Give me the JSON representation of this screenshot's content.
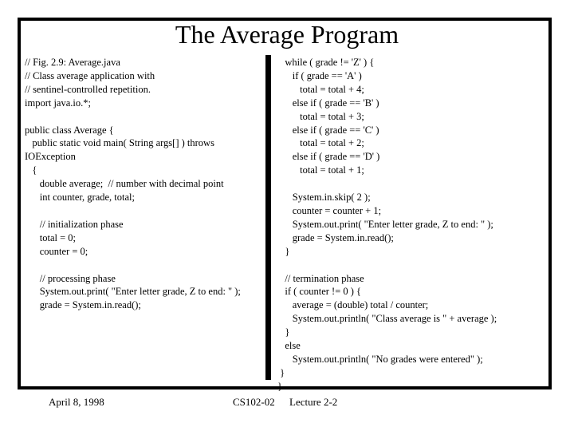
{
  "slide": {
    "title": "The Average Program",
    "left_code": "// Fig. 2.9: Average.java\n// Class average application with\n// sentinel-controlled repetition.\nimport java.io.*;\n\npublic class Average {\n   public static void main( String args[] ) throws\nIOException\n   {\n      double average;  // number with decimal point\n      int counter, grade, total;\n\n      // initialization phase\n      total = 0;\n      counter = 0;\n\n      // processing phase\n      System.out.print( \"Enter letter grade, Z to end: \" );\n      grade = System.in.read();",
    "right_code": "   while ( grade != 'Z' ) {\n      if ( grade == 'A' )\n         total = total + 4;\n      else if ( grade == 'B' )\n         total = total + 3;\n      else if ( grade == 'C' )\n         total = total + 2;\n      else if ( grade == 'D' )\n         total = total + 1;\n\n      System.in.skip( 2 );\n      counter = counter + 1;\n      System.out.print( \"Enter letter grade, Z to end: \" );\n      grade = System.in.read();\n   }\n\n   // termination phase\n   if ( counter != 0 ) {\n      average = (double) total / counter;\n      System.out.println( \"Class average is \" + average );\n   }\n   else\n      System.out.println( \"No grades were entered\" );\n }\n}",
    "footer": {
      "date": "April 8, 1998",
      "course": "CS102-02",
      "lecture": "Lecture 2-2"
    }
  }
}
